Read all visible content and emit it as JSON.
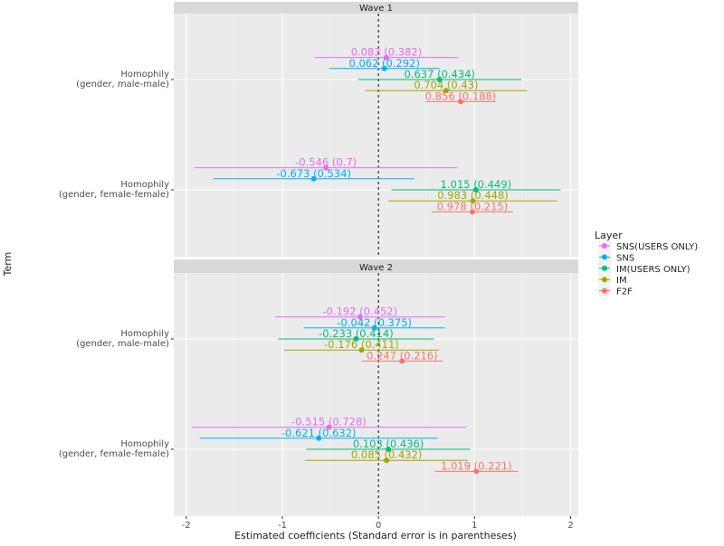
{
  "chart_data": {
    "type": "forest",
    "xlabel": "Estimated coefficients (Standard error is in parentheses)",
    "ylabel": "Term",
    "xlim": [
      -2.13,
      2.08
    ],
    "xticks": [
      -2,
      -1,
      0,
      1,
      2
    ],
    "reference_line": 0,
    "ci_multiplier": 1.96,
    "grid": true,
    "legend": {
      "title": "Layer",
      "placement": "right",
      "entries": [
        "SNS(USERS ONLY)",
        "SNS",
        "IM(USERS ONLY)",
        "IM",
        "F2F"
      ]
    },
    "colors": {
      "SNS(USERS ONLY)": "#E76BF3",
      "SNS": "#00B0F6",
      "IM(USERS ONLY)": "#00BF7D",
      "IM": "#A3A500",
      "F2F": "#F8766D"
    },
    "terms": [
      "Homophily\n(gender, male-male)",
      "Homophily\n(gender, female-female)"
    ],
    "panels": [
      {
        "title": "Wave 1",
        "rows": [
          {
            "term": 0,
            "layer": "SNS(USERS ONLY)",
            "estimate": 0.083,
            "se": 0.382
          },
          {
            "term": 0,
            "layer": "SNS",
            "estimate": 0.062,
            "se": 0.292
          },
          {
            "term": 0,
            "layer": "IM(USERS ONLY)",
            "estimate": 0.637,
            "se": 0.434
          },
          {
            "term": 0,
            "layer": "IM",
            "estimate": 0.704,
            "se": 0.43
          },
          {
            "term": 0,
            "layer": "F2F",
            "estimate": 0.856,
            "se": 0.188
          },
          {
            "term": 1,
            "layer": "SNS(USERS ONLY)",
            "estimate": -0.546,
            "se": 0.7
          },
          {
            "term": 1,
            "layer": "SNS",
            "estimate": -0.673,
            "se": 0.534
          },
          {
            "term": 1,
            "layer": "IM(USERS ONLY)",
            "estimate": 1.015,
            "se": 0.449
          },
          {
            "term": 1,
            "layer": "IM",
            "estimate": 0.983,
            "se": 0.448
          },
          {
            "term": 1,
            "layer": "F2F",
            "estimate": 0.978,
            "se": 0.215
          }
        ]
      },
      {
        "title": "Wave 2",
        "rows": [
          {
            "term": 0,
            "layer": "SNS(USERS ONLY)",
            "estimate": -0.192,
            "se": 0.452
          },
          {
            "term": 0,
            "layer": "SNS",
            "estimate": -0.042,
            "se": 0.375
          },
          {
            "term": 0,
            "layer": "IM(USERS ONLY)",
            "estimate": -0.233,
            "se": 0.414
          },
          {
            "term": 0,
            "layer": "IM",
            "estimate": -0.176,
            "se": 0.411
          },
          {
            "term": 0,
            "layer": "F2F",
            "estimate": 0.247,
            "se": 0.216
          },
          {
            "term": 1,
            "layer": "SNS(USERS ONLY)",
            "estimate": -0.515,
            "se": 0.728
          },
          {
            "term": 1,
            "layer": "SNS",
            "estimate": -0.621,
            "se": 0.632
          },
          {
            "term": 1,
            "layer": "IM(USERS ONLY)",
            "estimate": 0.103,
            "se": 0.436
          },
          {
            "term": 1,
            "layer": "IM",
            "estimate": 0.085,
            "se": 0.432
          },
          {
            "term": 1,
            "layer": "F2F",
            "estimate": 1.019,
            "se": 0.221
          }
        ]
      }
    ]
  }
}
